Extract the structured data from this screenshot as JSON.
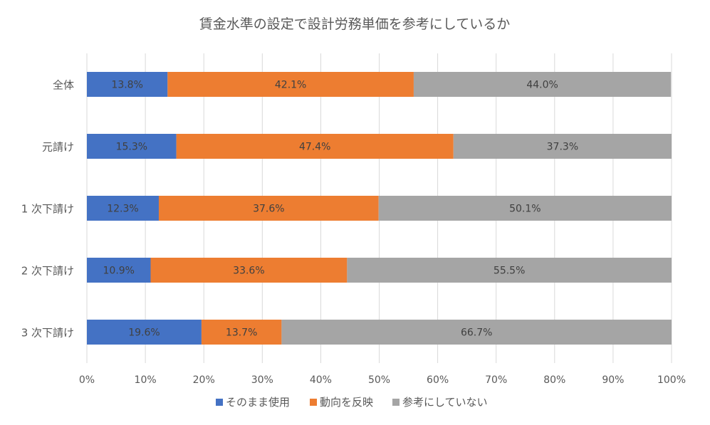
{
  "chart_data": {
    "type": "bar",
    "orientation": "horizontal",
    "stacked": "percent",
    "title": "賃金水準の設定で設計労務単価を参考にしているか",
    "categories": [
      "全体",
      "元請け",
      "1 次下請け",
      "2 次下請け",
      "3 次下請け"
    ],
    "series": [
      {
        "name": "そのまま使用",
        "color": "#4472c4",
        "values": [
          13.8,
          15.3,
          12.3,
          10.9,
          19.6
        ]
      },
      {
        "name": "動向を反映",
        "color": "#ed7d31",
        "values": [
          42.1,
          47.4,
          37.6,
          33.6,
          13.7
        ]
      },
      {
        "name": "参考にしていない",
        "color": "#a5a5a5",
        "values": [
          44.0,
          37.3,
          50.1,
          55.5,
          66.7
        ]
      }
    ],
    "data_labels": [
      [
        "13.8%",
        "42.1%",
        "44.0%"
      ],
      [
        "15.3%",
        "47.4%",
        "37.3%"
      ],
      [
        "12.3%",
        "37.6%",
        "50.1%"
      ],
      [
        "10.9%",
        "33.6%",
        "55.5%"
      ],
      [
        "19.6%",
        "13.7%",
        "66.7%"
      ]
    ],
    "xlim": [
      0,
      100
    ],
    "x_ticks": [
      "0%",
      "10%",
      "20%",
      "30%",
      "40%",
      "50%",
      "60%",
      "70%",
      "80%",
      "90%",
      "100%"
    ],
    "grid": true,
    "legend_position": "bottom"
  }
}
